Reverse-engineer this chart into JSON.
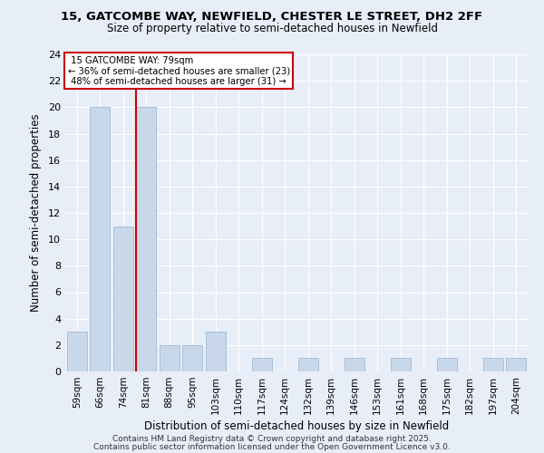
{
  "title1": "15, GATCOMBE WAY, NEWFIELD, CHESTER LE STREET, DH2 2FF",
  "title2": "Size of property relative to semi-detached houses in Newfield",
  "xlabel": "Distribution of semi-detached houses by size in Newfield",
  "ylabel": "Number of semi-detached properties",
  "categories": [
    "59sqm",
    "66sqm",
    "74sqm",
    "81sqm",
    "88sqm",
    "95sqm",
    "103sqm",
    "110sqm",
    "117sqm",
    "124sqm",
    "132sqm",
    "139sqm",
    "146sqm",
    "153sqm",
    "161sqm",
    "168sqm",
    "175sqm",
    "182sqm",
    "197sqm",
    "204sqm"
  ],
  "values": [
    3,
    20,
    11,
    20,
    2,
    2,
    3,
    0,
    1,
    0,
    1,
    0,
    1,
    0,
    1,
    0,
    1,
    0,
    1,
    1
  ],
  "bar_color": "#c8d8ea",
  "bar_edge_color": "#a8c0d8",
  "property_line_bin": 3,
  "property_label": "15 GATCOMBE WAY: 79sqm",
  "smaller_pct": "36%",
  "smaller_count": 23,
  "larger_pct": "48%",
  "larger_count": 31,
  "annotation_box_facecolor": "#ffffff",
  "annotation_box_edgecolor": "#cc0000",
  "red_line_color": "#cc0000",
  "ylim": [
    0,
    24
  ],
  "yticks": [
    0,
    2,
    4,
    6,
    8,
    10,
    12,
    14,
    16,
    18,
    20,
    22,
    24
  ],
  "bg_color": "#e8eef8",
  "grid_color": "#ffffff",
  "footer1": "Contains HM Land Registry data © Crown copyright and database right 2025.",
  "footer2": "Contains public sector information licensed under the Open Government Licence v3.0."
}
